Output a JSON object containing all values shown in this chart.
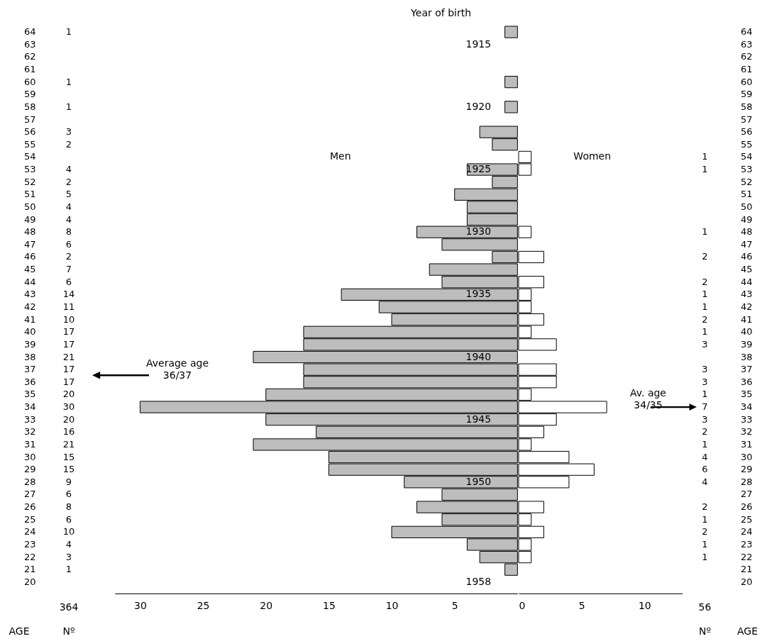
{
  "chart_data": [
    {
      "type": "bar",
      "orientation": "horizontal",
      "categories": [
        "64",
        "63",
        "62",
        "61",
        "60",
        "59",
        "58",
        "57",
        "56",
        "55",
        "54",
        "53",
        "52",
        "51",
        "50",
        "49",
        "48",
        "47",
        "46",
        "45",
        "44",
        "43",
        "42",
        "41",
        "40",
        "39",
        "38",
        "37",
        "36",
        "35",
        "34",
        "33",
        "32",
        "31",
        "30",
        "29",
        "28",
        "27",
        "26",
        "25",
        "24",
        "23",
        "22",
        "21",
        "20"
      ],
      "series": [
        {
          "name": "Men",
          "color": "#bdbdbd",
          "values": [
            1,
            null,
            null,
            null,
            1,
            null,
            1,
            null,
            3,
            2,
            null,
            4,
            2,
            5,
            4,
            4,
            8,
            6,
            2,
            7,
            6,
            14,
            11,
            10,
            17,
            17,
            21,
            17,
            17,
            20,
            30,
            20,
            16,
            21,
            15,
            15,
            9,
            6,
            8,
            6,
            10,
            4,
            3,
            1,
            null
          ],
          "value_labels": [
            "1",
            null,
            null,
            null,
            "1",
            null,
            "1",
            null,
            "3",
            "2",
            null,
            "4",
            "2",
            "5",
            "4",
            "4",
            "8",
            "6",
            "2",
            "7",
            "6",
            "14",
            "11",
            "10",
            "17",
            "17",
            "21",
            "17",
            "17",
            "20",
            "30",
            "20",
            "16",
            "21",
            "15",
            "15",
            "9",
            "6",
            "8",
            "6",
            "10",
            "4",
            "3",
            "1",
            null
          ]
        }
      ],
      "xlim": [
        32,
        0
      ],
      "xticks": [
        30,
        25,
        20,
        15,
        10,
        5
      ],
      "annotations": [
        "Year of birth",
        "1915",
        "1920",
        "1925",
        "1930",
        "1935",
        "1940",
        "1945",
        "1950",
        "1958",
        "Average age\n36/37",
        "364",
        "AGE",
        "Nº"
      ]
    },
    {
      "type": "bar",
      "orientation": "horizontal",
      "categories": [
        "64",
        "63",
        "62",
        "61",
        "60",
        "59",
        "58",
        "57",
        "56",
        "55",
        "54",
        "53",
        "52",
        "51",
        "50",
        "49",
        "48",
        "47",
        "46",
        "45",
        "44",
        "43",
        "42",
        "41",
        "40",
        "39",
        "38",
        "37",
        "36",
        "35",
        "34",
        "33",
        "32",
        "31",
        "30",
        "29",
        "28",
        "27",
        "26",
        "25",
        "24",
        "23",
        "22",
        "21",
        "20"
      ],
      "series": [
        {
          "name": "Women",
          "color": "#ffffff",
          "values": [
            null,
            null,
            null,
            null,
            null,
            null,
            null,
            null,
            null,
            null,
            1,
            1,
            null,
            null,
            null,
            null,
            1,
            null,
            2,
            null,
            2,
            1,
            1,
            2,
            1,
            3,
            null,
            3,
            3,
            1,
            7,
            3,
            2,
            1,
            4,
            6,
            4,
            null,
            2,
            1,
            2,
            1,
            1,
            null,
            null
          ],
          "value_labels": [
            null,
            null,
            null,
            null,
            null,
            null,
            null,
            null,
            null,
            null,
            "1",
            "1",
            null,
            null,
            null,
            null,
            "1",
            null,
            "2",
            null,
            "2",
            "1",
            "1",
            "2",
            "1",
            "3",
            null,
            "3",
            "3",
            "1",
            "7",
            "3",
            "2",
            "1",
            "4",
            "6",
            "4",
            null,
            "2",
            "1",
            "2",
            "1",
            "1",
            null,
            null
          ]
        }
      ],
      "xlim": [
        0,
        13
      ],
      "xticks": [
        0,
        5,
        10
      ],
      "annotations": [
        "Av. age\n34/35",
        "56",
        "Nº",
        "AGE"
      ]
    }
  ]
}
